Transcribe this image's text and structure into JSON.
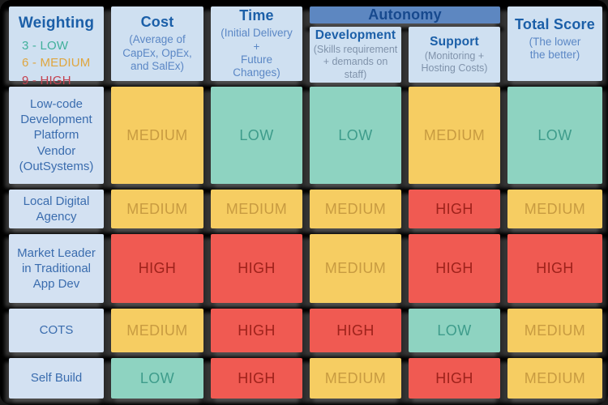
{
  "weighting": {
    "title": "Weighting",
    "legend": [
      {
        "label": "3 - LOW",
        "color": "#41b09b"
      },
      {
        "label": "6 - MEDIUM",
        "color": "#dfa640"
      },
      {
        "label": "9 - HIGH",
        "color": "#c4414f"
      }
    ]
  },
  "autonomy": {
    "label": "Autonomy"
  },
  "columns": [
    {
      "title": "Cost",
      "subtitle": "(Average of\nCapEx, OpEx,\nand SalEx)"
    },
    {
      "title": "Time",
      "subtitle": "(Initial Delivery\n+\nFuture Changes)"
    },
    {
      "title": "Development",
      "subtitle": "(Skills requirement\n+ demands on staff)",
      "group": "Autonomy"
    },
    {
      "title": "Support",
      "subtitle": "(Monitoring +\nHosting Costs)",
      "group": "Autonomy"
    },
    {
      "title": "Total Score",
      "subtitle": "(The lower\nthe better)"
    }
  ],
  "rows": [
    {
      "label": "Low-code Development Platform Vendor (OutSystems)",
      "cells": [
        "MEDIUM",
        "LOW",
        "LOW",
        "MEDIUM",
        "LOW"
      ]
    },
    {
      "label": "Local Digital Agency",
      "cells": [
        "MEDIUM",
        "MEDIUM",
        "MEDIUM",
        "HIGH",
        "MEDIUM"
      ]
    },
    {
      "label": "Market Leader in Traditional App Dev",
      "cells": [
        "HIGH",
        "HIGH",
        "MEDIUM",
        "HIGH",
        "HIGH"
      ]
    },
    {
      "label": "COTS",
      "cells": [
        "MEDIUM",
        "HIGH",
        "HIGH",
        "LOW",
        "MEDIUM"
      ]
    },
    {
      "label": "Self Build",
      "cells": [
        "LOW",
        "HIGH",
        "MEDIUM",
        "HIGH",
        "MEDIUM"
      ]
    }
  ],
  "levels": {
    "LOW": {
      "bg": "#8ed3c1",
      "fg": "#3e9c8b"
    },
    "MEDIUM": {
      "bg": "#f6cd62",
      "fg": "#c89b41"
    },
    "HIGH": {
      "bg": "#f05a52",
      "fg": "#9e221b"
    }
  },
  "palette": {
    "frame_bg": "#000000",
    "header_bg": "#cfe0f1",
    "row_label_bg": "#d3e1f2",
    "autonomy_band_bg": "#5d87c1",
    "title_text": "#1b5fa8",
    "subtitle_text": "#5b87c5",
    "band_text": "#17498e",
    "row_label_text": "#3a6cae",
    "shadow": "#8c8c8c"
  },
  "chart_data": {
    "type": "table",
    "weight_scale": {
      "LOW": 3,
      "MEDIUM": 6,
      "HIGH": 9
    },
    "columns": [
      "Cost",
      "Time",
      "Autonomy - Development",
      "Autonomy - Support",
      "Total Score"
    ],
    "column_notes": [
      "Average of CapEx, OpEx, and SalEx",
      "Initial Delivery + Future Changes",
      "Skills requirement + demands on staff",
      "Monitoring + Hosting Costs",
      "The lower the better"
    ],
    "rows": [
      {
        "option": "Low-code Development Platform Vendor (OutSystems)",
        "values": [
          "MEDIUM",
          "LOW",
          "LOW",
          "MEDIUM",
          "LOW"
        ]
      },
      {
        "option": "Local Digital Agency",
        "values": [
          "MEDIUM",
          "MEDIUM",
          "MEDIUM",
          "HIGH",
          "MEDIUM"
        ]
      },
      {
        "option": "Market Leader in Traditional App Dev",
        "values": [
          "HIGH",
          "HIGH",
          "MEDIUM",
          "HIGH",
          "HIGH"
        ]
      },
      {
        "option": "COTS",
        "values": [
          "MEDIUM",
          "HIGH",
          "HIGH",
          "LOW",
          "MEDIUM"
        ]
      },
      {
        "option": "Self Build",
        "values": [
          "LOW",
          "HIGH",
          "MEDIUM",
          "HIGH",
          "MEDIUM"
        ]
      }
    ]
  }
}
